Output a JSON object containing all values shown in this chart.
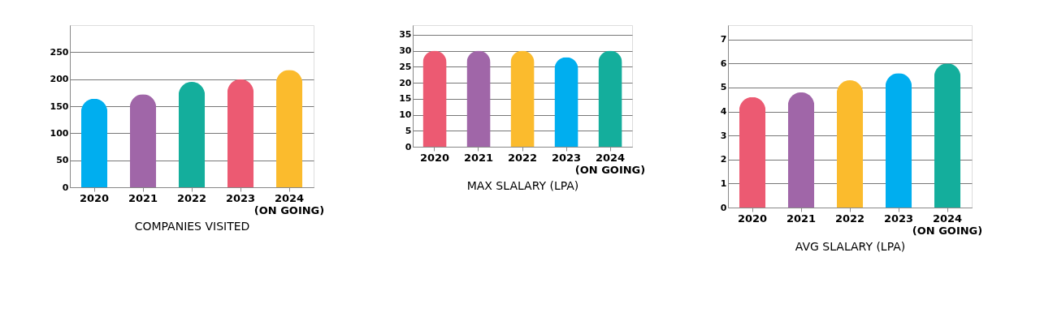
{
  "chart_data": [
    {
      "type": "bar",
      "xlabel": "COMPANIES VISITED",
      "categories": [
        "2020",
        "2021",
        "2022",
        "2023",
        "2024\n(ON GOING)"
      ],
      "values": [
        164,
        172,
        195,
        200,
        217
      ],
      "colors": [
        "#00aeef",
        "#a066a8",
        "#14ae9c",
        "#ec5a72",
        "#fbbb2d"
      ],
      "ylim": [
        0,
        300
      ],
      "yticks": [
        0,
        50,
        100,
        150,
        200,
        250
      ],
      "grid": "y"
    },
    {
      "type": "bar",
      "xlabel": "MAX SLALARY (LPA)",
      "categories": [
        "2020",
        "2021",
        "2022",
        "2023",
        "2024\n(ON GOING)"
      ],
      "values": [
        30,
        30,
        30,
        28,
        30
      ],
      "colors": [
        "#ec5a72",
        "#a066a8",
        "#fbbb2d",
        "#00aeef",
        "#14ae9c"
      ],
      "ylim": [
        0,
        38
      ],
      "yticks": [
        0,
        5,
        10,
        15,
        20,
        25,
        30,
        35
      ],
      "grid": "y"
    },
    {
      "type": "bar",
      "xlabel": "AVG SLALARY (LPA)",
      "categories": [
        "2020",
        "2021",
        "2022",
        "2023",
        "2024\n(ON GOING)"
      ],
      "values": [
        4.6,
        4.8,
        5.3,
        5.6,
        6
      ],
      "colors": [
        "#ec5a72",
        "#a066a8",
        "#fbbb2d",
        "#00aeef",
        "#14ae9c"
      ],
      "ylim": [
        0,
        7.6
      ],
      "yticks": [
        0,
        1,
        2,
        3,
        4,
        5,
        6,
        7
      ],
      "grid": "y"
    }
  ]
}
